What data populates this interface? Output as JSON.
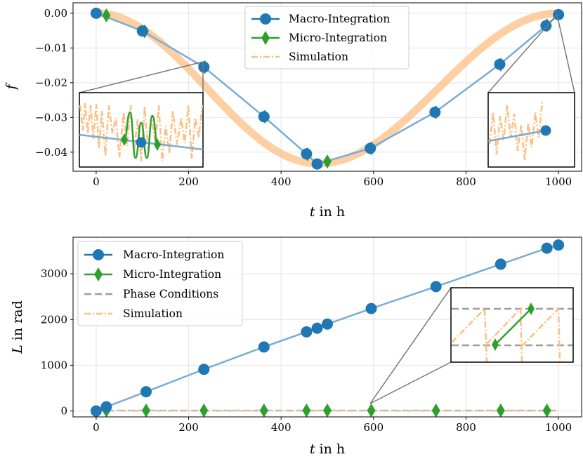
{
  "chart_data": [
    {
      "type": "line",
      "xlabel_italic": "t",
      "xlabel_rest": "in h",
      "ylabel": "f",
      "xlim": [
        -50,
        1050
      ],
      "ylim": [
        -0.0455,
        0.003
      ],
      "xticks": [
        0,
        200,
        400,
        600,
        800,
        1000
      ],
      "xtick_labels": [
        "0",
        "200",
        "400",
        "600",
        "800",
        "1000"
      ],
      "yticks": [
        0.0,
        -0.01,
        -0.02,
        -0.03,
        -0.04
      ],
      "ytick_labels": [
        "0.00",
        "−0.01",
        "−0.02",
        "−0.03",
        "−0.04"
      ],
      "grid": true,
      "legend_position": "top-center",
      "legend": [
        "Macro-Integration",
        "Micro-Integration",
        "Simulation"
      ],
      "series": [
        {
          "name": "Macro-Integration",
          "x": [
            0,
            100,
            233,
            363,
            455,
            478,
            593,
            733,
            873,
            973,
            1000
          ],
          "y": [
            0.0,
            -0.0051,
            -0.0155,
            -0.0298,
            -0.0405,
            -0.0434,
            -0.0389,
            -0.0285,
            -0.0147,
            -0.0036,
            -0.0004
          ]
        },
        {
          "name": "Micro-Integration",
          "x": [
            22,
            105,
            235,
            365,
            457,
            500,
            595,
            735,
            875,
            975
          ],
          "y": [
            -0.0006,
            -0.0052,
            -0.0155,
            -0.0298,
            -0.0406,
            -0.0427,
            -0.0389,
            -0.0285,
            -0.0148,
            -0.0035
          ]
        },
        {
          "name": "Simulation",
          "x": [
            0,
            100,
            200,
            300,
            400,
            480,
            600,
            700,
            800,
            900,
            1000
          ],
          "y": [
            0.0,
            -0.005,
            -0.0125,
            -0.025,
            -0.038,
            -0.043,
            -0.039,
            -0.032,
            -0.022,
            -0.011,
            -0.0005
          ]
        }
      ]
    },
    {
      "type": "line",
      "xlabel_italic": "t",
      "xlabel_rest": "in h",
      "ylabel_italic": "L",
      "ylabel_rest": "in rad",
      "xlim": [
        -50,
        1050
      ],
      "ylim": [
        -130,
        3800
      ],
      "xticks": [
        0,
        200,
        400,
        600,
        800,
        1000
      ],
      "xtick_labels": [
        "0",
        "200",
        "400",
        "600",
        "800",
        "1000"
      ],
      "yticks": [
        0,
        1000,
        2000,
        3000
      ],
      "ytick_labels": [
        "0",
        "1000",
        "2000",
        "3000"
      ],
      "grid": true,
      "legend_position": "top-left",
      "legend": [
        "Macro-Integration",
        "Micro-Integration",
        "Phase Conditions",
        "Simulation"
      ],
      "series": [
        {
          "name": "Macro-Integration",
          "x": [
            0,
            22,
            108,
            233,
            363,
            455,
            478,
            500,
            595,
            735,
            875,
            975,
            1000
          ],
          "y": [
            0,
            90,
            420,
            910,
            1400,
            1730,
            1810,
            1900,
            2240,
            2720,
            3210,
            3560,
            3630
          ]
        },
        {
          "name": "Micro-Integration",
          "x": [
            22,
            108,
            233,
            363,
            455,
            500,
            595,
            735,
            875,
            975
          ],
          "y": [
            10,
            10,
            10,
            10,
            10,
            10,
            10,
            10,
            10,
            10
          ]
        },
        {
          "name": "Simulation",
          "x": [
            0,
            1000
          ],
          "y": [
            5,
            5
          ]
        }
      ]
    }
  ]
}
